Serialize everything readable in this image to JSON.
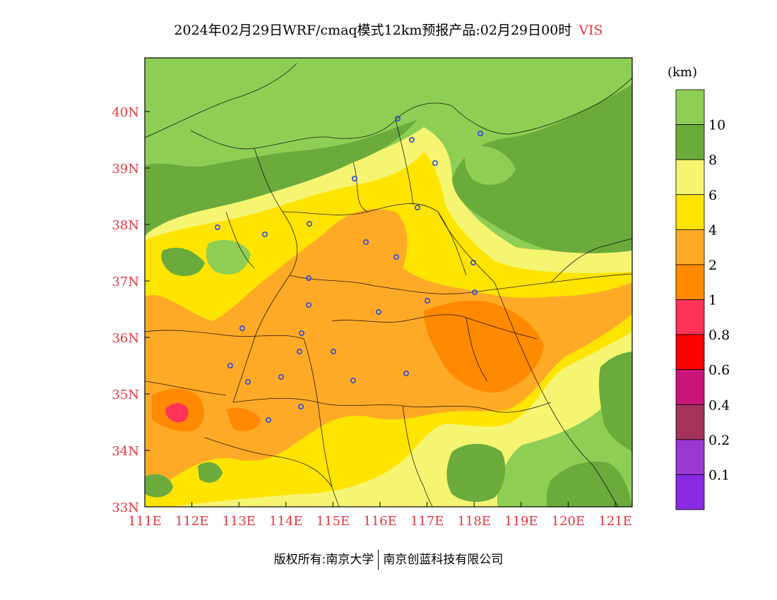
{
  "title": {
    "text": "2024年02月29日WRF/cmaq模式12km预报产品:02月29日00时",
    "variable": "VIS"
  },
  "map": {
    "lon_ticks": [
      "111E",
      "112E",
      "113E",
      "114E",
      "115E",
      "116E",
      "117E",
      "118E",
      "119E",
      "120E",
      "121E"
    ],
    "lat_ticks": [
      "33N",
      "34N",
      "35N",
      "36N",
      "37N",
      "38N",
      "39N",
      "40N"
    ],
    "station_marker_color": "#2b4bd9"
  },
  "legend": {
    "unit": "(km)",
    "levels": [
      {
        "label": "10",
        "color": "#8fce55"
      },
      {
        "label": "8",
        "color": "#6aab3c"
      },
      {
        "label": "6",
        "color": "#f5f571"
      },
      {
        "label": "4",
        "color": "#ffe400"
      },
      {
        "label": "2",
        "color": "#ffaa27"
      },
      {
        "label": "1",
        "color": "#ff8a00"
      },
      {
        "label": "0.8",
        "color": "#ff3258"
      },
      {
        "label": "0.6",
        "color": "#ff0000"
      },
      {
        "label": "0.4",
        "color": "#c9157a"
      },
      {
        "label": "0.2",
        "color": "#a4325a"
      },
      {
        "label": "0.1",
        "color": "#9a39d0"
      },
      {
        "label": "",
        "color": "#8a2be2"
      }
    ]
  },
  "footer": {
    "left": "版权所有:南京大学",
    "right": "南京创蓝科技有限公司"
  }
}
